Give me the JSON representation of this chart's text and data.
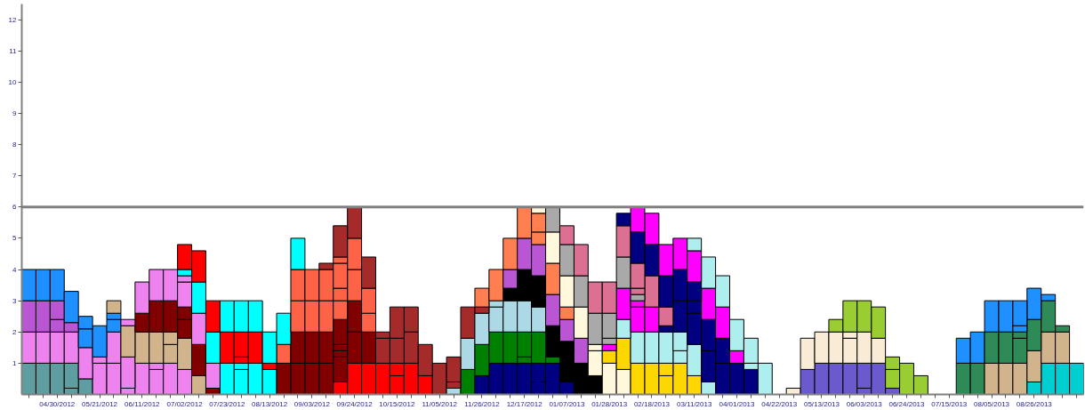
{
  "chart_data": {
    "type": "bar",
    "stacked": true,
    "grid": false,
    "categories": [
      null,
      null,
      "04/30/2012",
      null,
      null,
      "05/21/2012",
      null,
      null,
      "06/11/2012",
      null,
      null,
      "07/02/2012",
      null,
      null,
      "07/23/2012",
      null,
      null,
      "08/13/2012",
      null,
      null,
      "09/03/2012",
      null,
      null,
      "09/24/2012",
      null,
      null,
      "10/15/2012",
      null,
      null,
      "11/05/2012",
      null,
      null,
      "11/26/2012",
      null,
      null,
      "12/17/2012",
      null,
      null,
      "01/07/2013",
      null,
      null,
      "01/28/2013",
      null,
      null,
      "02/18/2013",
      null,
      null,
      "03/11/2013",
      null,
      null,
      "04/01/2013",
      null,
      null,
      "04/22/2013",
      null,
      null,
      "05/13/2013",
      null,
      null,
      "06/03/2013",
      null,
      null,
      "06/24/2013",
      null,
      null,
      "07/15/2013",
      null,
      null,
      "08/05/2013",
      null,
      null,
      "08/26/2013",
      null,
      null,
      null
    ],
    "ylim": [
      0,
      12.5
    ],
    "yticks": [
      1,
      2,
      3,
      4,
      5,
      6,
      7,
      8,
      9,
      10,
      11,
      12
    ],
    "ref_lines": [
      {
        "axis": "y",
        "value": 6,
        "color": "#808080"
      }
    ],
    "series": [
      {
        "values": [
          1,
          1,
          1,
          0.2,
          0.5,
          1,
          1,
          0.2,
          1,
          0.8,
          1,
          0.8,
          0.6,
          0.2,
          1,
          0.8,
          1,
          0.8,
          1,
          1,
          1,
          1,
          0.4,
          1,
          1,
          1,
          0.6,
          1,
          0.6,
          1,
          0.2,
          0.8,
          0.6,
          1,
          1,
          1,
          0.4,
          1,
          0.4,
          1,
          0.6,
          1,
          0.8,
          1,
          1,
          0.6,
          1,
          0.6,
          0.4,
          1,
          1,
          0.8,
          1,
          null,
          0.2,
          0.8,
          1,
          1,
          1,
          0.2,
          1,
          0.2,
          1,
          0.6,
          null,
          null,
          1,
          1,
          1,
          1,
          1,
          0.4,
          1,
          1,
          1
        ],
        "colors": [
          "#5f9ea0",
          "#5f9ea0",
          "#5f9ea0",
          "#5f9ea0",
          "#5f9ea0",
          "#ee82ee",
          "#ee82ee",
          "#ee82ee",
          "#ee82ee",
          "#ee82ee",
          "#ee82ee",
          "#ee82ee",
          "#d2b48c",
          "#800000",
          "#00ffff",
          "#00ffff",
          "#00ffff",
          "#00ffff",
          "#800000",
          "#800000",
          "#800000",
          "#800000",
          "#ff0000",
          "#ff0000",
          "#ff0000",
          "#ff0000",
          "#ff0000",
          "#ff0000",
          "#ff0000",
          "#a52a2a",
          "#add8e6",
          "#008000",
          "#000080",
          "#000080",
          "#000080",
          "#000080",
          "#000080",
          "#000080",
          "#000080",
          "#000000",
          "#000000",
          "#fff8dc",
          "#fff8dc",
          "#ffd700",
          "#ffd700",
          "#ffd700",
          "#ffd700",
          "#ffd700",
          "#afeeee",
          "#000080",
          "#000080",
          "#000080",
          "#afeeee",
          null,
          "#faebd7",
          "#6a5acd",
          "#6a5acd",
          "#6a5acd",
          "#6a5acd",
          "#6a5acd",
          "#6a5acd",
          "#6a5acd",
          "#9acd32",
          "#9acd32",
          null,
          null,
          "#2e8b57",
          "#2e8b57",
          "#d2b48c",
          "#d2b48c",
          "#d2b48c",
          "#00ced1",
          "#00ced1",
          "#00ced1",
          "#00ced1"
        ]
      },
      {
        "values": [
          1,
          1,
          1,
          0.8,
          1,
          0.2,
          1,
          1,
          1,
          0.2,
          0.6,
          1,
          1,
          0.8,
          1,
          0.2,
          1,
          0.2,
          0.6,
          1,
          1,
          1,
          0.8,
          1,
          1,
          0.8,
          0.4,
          1,
          1,
          null,
          0.2,
          1,
          1,
          1,
          1,
          0.2,
          0.6,
          0.2,
          1,
          0.8,
          0.8,
          0.4,
          1,
          1,
          1,
          0.4,
          0.4,
          1,
          1,
          0.8,
          0.4,
          0.2,
          null,
          null,
          null,
          1,
          1,
          1,
          0.8,
          0.8,
          0.8,
          0.6,
          null,
          null,
          null,
          null,
          0.8,
          1,
          1,
          1,
          0.8,
          1,
          1,
          1,
          null
        ],
        "colors": [
          "#ee82ee",
          "#ee82ee",
          "#ee82ee",
          "#5f9ea0",
          "#ee82ee",
          "#ee82ee",
          "#ee82ee",
          "#ee82ee",
          "#d2b48c",
          "#ee82ee",
          "#d2b48c",
          "#d2b48c",
          "#800000",
          "#ee82ee",
          "#ff0000",
          "#00ffff",
          "#ff0000",
          "#ff0000",
          "#ff6347",
          "#800000",
          "#800000",
          "#800000",
          "#800000",
          "#800000",
          "#800000",
          "#a52a2a",
          "#ff0000",
          "#a52a2a",
          "#a52a2a",
          null,
          "#a52a2a",
          "#add8e6",
          "#008000",
          "#008000",
          "#008000",
          "#008000",
          "#000080",
          "#008000",
          "#000000",
          "#ba55d3",
          "#fff8dc",
          "#ffd700",
          "#ffd700",
          "#afeeee",
          "#afeeee",
          "#ffd700",
          "#afeeee",
          "#afeeee",
          "#000080",
          "#000080",
          "#ff00ff",
          "#afeeee",
          null,
          null,
          null,
          "#faebd7",
          "#faebd7",
          "#faebd7",
          "#faebd7",
          "#6a5acd",
          "#faebd7",
          "#9acd32",
          null,
          null,
          null,
          null,
          "#1e90ff",
          "#1e90ff",
          "#2e8b57",
          "#2e8b57",
          "#2e8b57",
          "#d2b48c",
          "#d2b48c",
          "#d2b48c",
          null
        ]
      },
      {
        "values": [
          1,
          1,
          0.4,
          1,
          0.6,
          1,
          0.4,
          1,
          0.6,
          1,
          0.4,
          0.6,
          1,
          1,
          1,
          0.2,
          1,
          1,
          1,
          1,
          1,
          1,
          0.2,
          1,
          0.6,
          0.2,
          0.8,
          0.8,
          null,
          null,
          0.8,
          1,
          1,
          0.8,
          1,
          0.8,
          1,
          1,
          0.3,
          1,
          0.2,
          0.2,
          0.6,
          0.8,
          0.8,
          1,
          0.6,
          1,
          1,
          1,
          1,
          0.8,
          null,
          null,
          null,
          null,
          null,
          0.4,
          0.2,
          1,
          1,
          0.4,
          null,
          null,
          null,
          null,
          null,
          null,
          1,
          1,
          0.2,
          1,
          1,
          0.2,
          null
        ],
        "colors": [
          "#ba55d3",
          "#ba55d3",
          "#ba55d3",
          "#ee82ee",
          "#1e90ff",
          "#1e90ff",
          "#1e90ff",
          "#d2b48c",
          "#800000",
          "#d2b48c",
          "#d2b48c",
          "#800000",
          "#ee82ee",
          "#00ffff",
          "#00ffff",
          "#ff0000",
          "#00ffff",
          "#00ffff",
          "#00ffff",
          "#ff6347",
          "#ff6347",
          "#ff6347",
          "#800000",
          "#800000",
          "#ff6347",
          "#a52a2a",
          "#a52a2a",
          "#a52a2a",
          null,
          null,
          "#a52a2a",
          "#a52a2a",
          "#add8e6",
          "#add8e6",
          "#add8e6",
          "#008000",
          "#008000",
          "#000000",
          "#000000",
          "#fff8dc",
          "#fff8dc",
          "#ff00ff",
          "#afeeee",
          "#ff00ff",
          "#ff00ff",
          "#afeeee",
          "#afeeee",
          "#000080",
          "#000080",
          "#ff00ff",
          "#afeeee",
          "#afeeee",
          null,
          null,
          null,
          null,
          null,
          "#9acd32",
          "#faebd7",
          "#faebd7",
          "#9acd32",
          "#9acd32",
          null,
          null,
          null,
          null,
          null,
          null,
          "#1e90ff",
          "#1e90ff",
          "#2e8b57",
          "#2e8b57",
          "#2e8b57",
          "#2e8b57",
          null
        ]
      },
      {
        "values": [
          1,
          1,
          0.6,
          0.3,
          0.4,
          null,
          0.2,
          0.2,
          1,
          1,
          1,
          0.4,
          1,
          1,
          null,
          0.8,
          null,
          null,
          null,
          1,
          1,
          1,
          0.2,
          1,
          0.8,
          null,
          1,
          null,
          null,
          null,
          null,
          null,
          0.2,
          0.2,
          0.4,
          1,
          0.8,
          1,
          0.7,
          1,
          1,
          0.2,
          1,
          0.2,
          1,
          0.2,
          1,
          0.4,
          1,
          1,
          null,
          null,
          null,
          null,
          null,
          null,
          null,
          null,
          1,
          1,
          null,
          null,
          null,
          null,
          null,
          null,
          null,
          null,
          null,
          null,
          0.2,
          1,
          0.2,
          null,
          null
        ],
        "colors": [
          "#1e90ff",
          "#1e90ff",
          "#ba55d3",
          "#ba55d3",
          "#1e90ff",
          null,
          "#1e90ff",
          "#ee82ee",
          "#ee82ee",
          "#800000",
          "#800000",
          "#800000",
          "#00ffff",
          "#ff0000",
          null,
          "#ff0000",
          null,
          null,
          null,
          "#ff6347",
          "#ff6347",
          "#ff6347",
          "#800000",
          "#ff6347",
          "#ff6347",
          null,
          "#a52a2a",
          null,
          null,
          null,
          null,
          null,
          "#a52a2a",
          "#add8e6",
          "#000000",
          "#add8e6",
          "#add8e6",
          "#ba55d3",
          "#ba55d3",
          "#a9a9a9",
          "#a9a9a9",
          "#a9a9a9",
          "#ff00ff",
          "#ff00ff",
          "#db7093",
          "#000080",
          "#000080",
          "#000080",
          "#ff00ff",
          "#afeeee",
          null,
          null,
          null,
          null,
          null,
          null,
          null,
          null,
          "#9acd32",
          "#9acd32",
          null,
          null,
          null,
          null,
          null,
          null,
          null,
          null,
          null,
          null,
          "#1e90ff",
          "#1e90ff",
          "#1e90ff",
          null,
          null
        ]
      },
      {
        "values": [
          null,
          null,
          1,
          1,
          null,
          null,
          0.4,
          null,
          null,
          1,
          1,
          0.8,
          1,
          null,
          null,
          1,
          null,
          null,
          null,
          1,
          null,
          0.2,
          0.8,
          1,
          1,
          null,
          null,
          null,
          null,
          null,
          null,
          null,
          0.6,
          1,
          0.6,
          1,
          1,
          1,
          0.4,
          1,
          1,
          0.8,
          1,
          0.2,
          1,
          0.6,
          1,
          0.6,
          1,
          null,
          null,
          null,
          null,
          null,
          null,
          null,
          null,
          null,
          null,
          null,
          null,
          null,
          null,
          null,
          null,
          null,
          null,
          null,
          null,
          null,
          0.8,
          null,
          null,
          null,
          null
        ],
        "colors": [
          null,
          null,
          "#1e90ff",
          "#1e90ff",
          null,
          null,
          "#d2b48c",
          null,
          null,
          "#ee82ee",
          "#ee82ee",
          "#ee82ee",
          "#ff0000",
          null,
          null,
          "#00ffff",
          null,
          null,
          null,
          "#00ffff",
          null,
          "#a52a2a",
          "#800000",
          "#ff6347",
          "#a52a2a",
          null,
          null,
          null,
          null,
          null,
          null,
          null,
          "#ff7f50",
          "#ff7f50",
          "#ba55d3",
          "#000000",
          "#000000",
          "#ff7f50",
          "#ff7f50",
          "#db7093",
          "#db7093",
          "#a9a9a9",
          "#a9a9a9",
          "#a9a9a9",
          "#000080",
          "#db7093",
          "#000080",
          "#000080",
          "#afeeee",
          null,
          null,
          null,
          null,
          null,
          null,
          null,
          null,
          null,
          null,
          null,
          null,
          null,
          null,
          null,
          null,
          null,
          null,
          null,
          null,
          null,
          "#1e90ff",
          null,
          null,
          null,
          null
        ]
      },
      {
        "values": [
          null,
          null,
          null,
          null,
          null,
          null,
          null,
          null,
          null,
          null,
          null,
          0.2,
          null,
          null,
          null,
          null,
          null,
          null,
          null,
          null,
          null,
          null,
          0.6,
          1,
          null,
          null,
          null,
          null,
          null,
          null,
          null,
          null,
          null,
          null,
          1,
          1,
          1,
          1,
          1,
          null,
          null,
          1,
          1,
          0.2,
          1,
          1,
          1,
          1,
          null,
          null,
          null,
          null,
          null,
          null,
          null,
          null,
          null,
          null,
          null,
          null,
          null,
          null,
          null,
          null,
          null,
          null,
          null,
          null,
          null,
          null,
          null,
          null,
          null,
          null,
          null
        ],
        "colors": [
          null,
          null,
          null,
          null,
          null,
          null,
          null,
          null,
          null,
          null,
          null,
          "#ee82ee",
          null,
          null,
          null,
          null,
          null,
          null,
          null,
          null,
          null,
          null,
          "#ff6347",
          "#a52a2a",
          null,
          null,
          null,
          null,
          null,
          null,
          null,
          null,
          null,
          null,
          "#ff7f50",
          "#ba55d3",
          "#ba55d3",
          "#fff8dc",
          "#fff8dc",
          null,
          null,
          "#db7093",
          "#db7093",
          "#db7093",
          "#ff00ff",
          "#000080",
          "#ff00ff",
          "#ff00ff",
          null,
          null,
          null,
          null,
          null,
          null,
          null,
          null,
          null,
          null,
          null,
          null,
          null,
          null,
          null,
          null,
          null,
          null,
          null,
          null,
          null,
          null,
          null,
          null,
          null,
          null,
          null
        ]
      },
      {
        "values": [
          null,
          null,
          null,
          null,
          null,
          null,
          null,
          null,
          null,
          null,
          null,
          0.2,
          null,
          null,
          null,
          null,
          null,
          null,
          null,
          null,
          null,
          null,
          0.4,
          null,
          null,
          null,
          null,
          null,
          null,
          null,
          null,
          null,
          null,
          null,
          null,
          1,
          0.4,
          0.8,
          1,
          null,
          null,
          null,
          0.4,
          0.8,
          null,
          1,
          null,
          0.4,
          null,
          null,
          null,
          null,
          null,
          null,
          null,
          null,
          null,
          null,
          null,
          null,
          null,
          null,
          null,
          null,
          null,
          null,
          null,
          null,
          null,
          null,
          null,
          null,
          null,
          null,
          null
        ],
        "colors": [
          null,
          null,
          null,
          null,
          null,
          null,
          null,
          null,
          null,
          null,
          null,
          "#00ffff",
          null,
          null,
          null,
          null,
          null,
          null,
          null,
          null,
          null,
          null,
          "#ff6347",
          null,
          null,
          null,
          null,
          null,
          null,
          null,
          null,
          null,
          null,
          null,
          null,
          "#ff7f50",
          "#ff7f50",
          "#a9a9a9",
          "#a9a9a9",
          null,
          null,
          null,
          "#000080",
          "#db7093",
          null,
          "#ff00ff",
          null,
          "#afeeee",
          null,
          null,
          null,
          null,
          null,
          null,
          null,
          null,
          null,
          null,
          null,
          null,
          null,
          null,
          null,
          null,
          null,
          null,
          null,
          null,
          null,
          null,
          null,
          null,
          null,
          null,
          null
        ]
      },
      {
        "values": [
          null,
          null,
          null,
          null,
          null,
          null,
          null,
          null,
          null,
          null,
          null,
          0.8,
          null,
          null,
          null,
          null,
          null,
          null,
          null,
          null,
          null,
          null,
          0.8,
          null,
          null,
          null,
          null,
          null,
          null,
          null,
          null,
          null,
          null,
          null,
          null,
          null,
          0.6,
          null,
          0.6,
          null,
          null,
          null,
          null,
          1,
          null,
          null,
          null,
          null,
          null,
          null,
          null,
          null,
          null,
          null,
          null,
          null,
          null,
          null,
          null,
          null,
          null,
          null,
          null,
          null,
          null,
          null,
          null,
          null,
          null,
          null,
          null,
          null,
          null,
          null,
          null
        ],
        "colors": [
          null,
          null,
          null,
          null,
          null,
          null,
          null,
          null,
          null,
          null,
          null,
          "#ff0000",
          null,
          null,
          null,
          null,
          null,
          null,
          null,
          null,
          null,
          null,
          "#ff6347",
          null,
          null,
          null,
          null,
          null,
          null,
          null,
          null,
          null,
          null,
          null,
          null,
          null,
          "#ff7f50",
          null,
          "#db7093",
          null,
          null,
          null,
          null,
          "#000080",
          null,
          null,
          null,
          null,
          null,
          null,
          null,
          null,
          null,
          null,
          null,
          null,
          null,
          null,
          null,
          null,
          null,
          null,
          null,
          null,
          null,
          null,
          null,
          null,
          null,
          null,
          null,
          null,
          null,
          null,
          null
        ]
      },
      {
        "values": [
          null,
          null,
          null,
          null,
          null,
          null,
          null,
          null,
          null,
          null,
          null,
          null,
          null,
          null,
          null,
          null,
          null,
          null,
          null,
          null,
          null,
          null,
          0.2,
          null,
          null,
          null,
          null,
          null,
          null,
          null,
          null,
          null,
          null,
          null,
          null,
          null,
          0.2,
          null,
          null,
          null,
          null,
          null,
          null,
          0.8,
          null,
          null,
          null,
          null,
          null,
          null,
          null,
          null,
          null,
          null,
          null,
          null,
          null,
          null,
          null,
          null,
          null,
          null,
          null,
          null,
          null,
          null,
          null,
          null,
          null,
          null,
          null,
          null,
          null,
          null,
          null
        ],
        "colors": [
          null,
          null,
          null,
          null,
          null,
          null,
          null,
          null,
          null,
          null,
          null,
          null,
          null,
          null,
          null,
          null,
          null,
          null,
          null,
          null,
          null,
          null,
          "#ff6347",
          null,
          null,
          null,
          null,
          null,
          null,
          null,
          null,
          null,
          null,
          null,
          null,
          null,
          "#fff8dc",
          null,
          null,
          null,
          null,
          null,
          null,
          "#ff00ff",
          null,
          null,
          null,
          null,
          null,
          null,
          null,
          null,
          null,
          null,
          null,
          null,
          null,
          null,
          null,
          null,
          null,
          null,
          null,
          null,
          null,
          null,
          null,
          null,
          null,
          null,
          null,
          null,
          null,
          null,
          null
        ]
      },
      {
        "values": [
          null,
          null,
          null,
          null,
          null,
          null,
          null,
          null,
          null,
          null,
          null,
          null,
          null,
          null,
          null,
          null,
          null,
          null,
          null,
          null,
          null,
          null,
          1,
          null,
          null,
          null,
          null,
          null,
          null,
          null,
          null,
          null,
          null,
          null,
          null,
          null,
          null,
          null,
          null,
          null,
          null,
          null,
          null,
          null,
          null,
          null,
          null,
          null,
          null,
          null,
          null,
          null,
          null,
          null,
          null,
          null,
          null,
          null,
          null,
          null,
          null,
          null,
          null,
          null,
          null,
          null,
          null,
          null,
          null,
          null,
          null,
          null,
          null,
          null,
          null
        ],
        "colors": [
          null,
          null,
          null,
          null,
          null,
          null,
          null,
          null,
          null,
          null,
          null,
          null,
          null,
          null,
          null,
          null,
          null,
          null,
          null,
          null,
          null,
          null,
          "#a52a2a",
          null,
          null,
          null,
          null,
          null,
          null,
          null,
          null,
          null,
          null,
          null,
          null,
          null,
          null,
          null,
          null,
          null,
          null,
          null,
          null,
          null,
          null,
          null,
          null,
          null,
          null,
          null,
          null,
          null,
          null,
          null,
          null,
          null,
          null,
          null,
          null,
          null,
          null,
          null,
          null,
          null,
          null,
          null,
          null,
          null,
          null,
          null,
          null,
          null,
          null,
          null,
          null
        ]
      }
    ]
  }
}
